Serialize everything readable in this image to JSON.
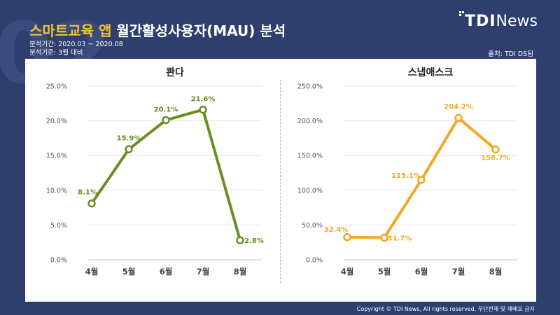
{
  "header": {
    "title_highlight": "스마트교육 앱",
    "title_rest": "월간활성사용자(MAU) 분석",
    "period": "분석기간: 2020.03 ~ 2020.08",
    "basis": "분석기준: 3월 대비",
    "source": "출처: TDI DS팀",
    "logo_bold": "TDI",
    "logo_light": "News"
  },
  "footer": {
    "copyright": "Copyright © TDI News, All rights reserved, 무단전재 및 재배포 금지"
  },
  "colors": {
    "background": "#2e3f6e",
    "accent": "#f5c330",
    "green": "#6b8e23",
    "orange": "#f5a623"
  },
  "chart_data": [
    {
      "type": "line",
      "title": "콴다",
      "categories": [
        "4월",
        "5월",
        "6월",
        "7월",
        "8월"
      ],
      "series": [
        {
          "values": [
            8.1,
            15.9,
            20.1,
            21.6,
            2.8
          ]
        }
      ],
      "value_labels": [
        "8.1%",
        "15.9%",
        "20.1%",
        "21.6%",
        "2.8%"
      ],
      "ylim": [
        0,
        25
      ],
      "y_ticks": [
        "0.0%",
        "5.0%",
        "10.0%",
        "15.0%",
        "20.0%",
        "25.0%"
      ],
      "grid": true,
      "color": "#6b8e23"
    },
    {
      "type": "line",
      "title": "스냅애스크",
      "categories": [
        "4월",
        "5월",
        "6월",
        "7월",
        "8월"
      ],
      "series": [
        {
          "values": [
            32.4,
            31.7,
            115.1,
            204.2,
            158.7
          ]
        }
      ],
      "value_labels": [
        "32.4%",
        "31.7%",
        "115.1%",
        "204.2%",
        "158.7%"
      ],
      "ylim": [
        0,
        250
      ],
      "y_ticks": [
        "0.0%",
        "50.0%",
        "100.0%",
        "150.0%",
        "200.0%",
        "250.0%"
      ],
      "grid": true,
      "color": "#f5a623"
    }
  ]
}
